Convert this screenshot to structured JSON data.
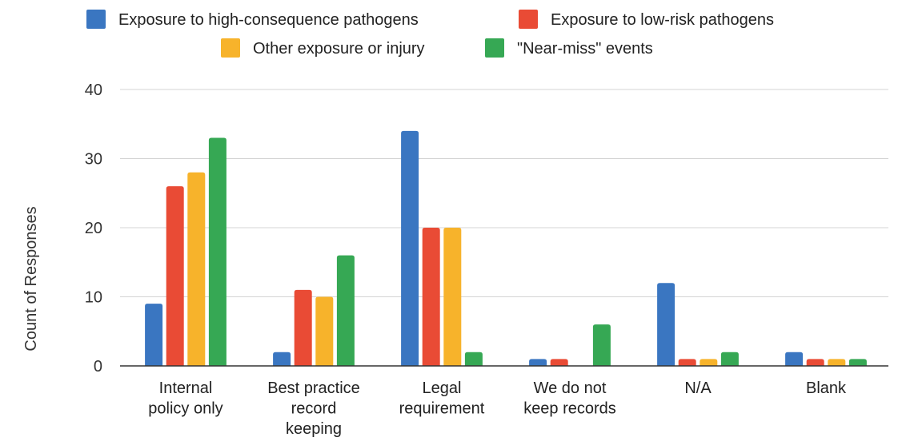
{
  "chart_data": {
    "type": "bar",
    "title": "",
    "xlabel": "",
    "ylabel": "Count of Responses",
    "ylim": [
      0,
      40
    ],
    "yticks": [
      0,
      10,
      20,
      30,
      40
    ],
    "grid": true,
    "legend_position": "top",
    "categories": [
      [
        "Internal",
        "policy only"
      ],
      [
        "Best practice",
        "record",
        "keeping"
      ],
      [
        "Legal",
        "requirement"
      ],
      [
        "We do not",
        "keep records"
      ],
      [
        "N/A"
      ],
      [
        "Blank"
      ]
    ],
    "series": [
      {
        "name": "Exposure to high-consequence pathogens",
        "color": "#3a76c1",
        "values": [
          9,
          2,
          34,
          1,
          12,
          2
        ]
      },
      {
        "name": "Exposure to low-risk pathogens",
        "color": "#e94b35",
        "values": [
          26,
          11,
          20,
          1,
          1,
          1
        ]
      },
      {
        "name": "Other exposure or injury",
        "color": "#f7b32b",
        "values": [
          28,
          10,
          20,
          0,
          1,
          1
        ]
      },
      {
        "name": "\"Near-miss\" events",
        "color": "#36a854",
        "values": [
          33,
          16,
          2,
          6,
          2,
          1
        ]
      }
    ]
  }
}
